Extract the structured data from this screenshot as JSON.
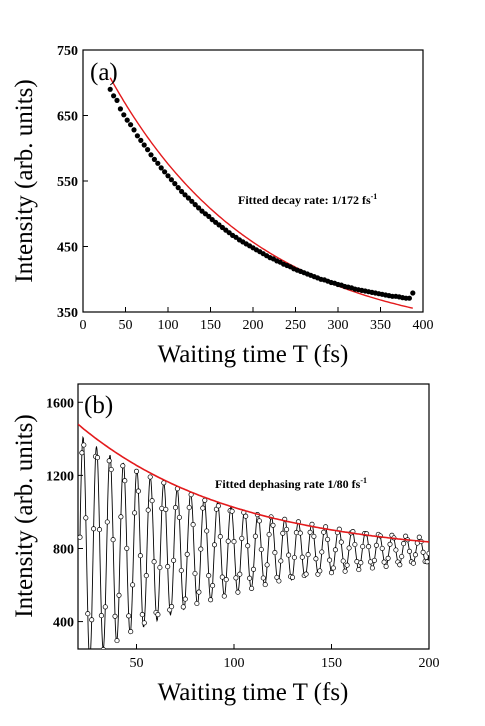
{
  "chart_data": [
    {
      "type": "scatter",
      "panel_label": "(a)",
      "xlabel": "Waiting time T (fs)",
      "ylabel": "Intensity (arb. units)",
      "xlim": [
        0,
        400
      ],
      "ylim": [
        350,
        750
      ],
      "xticks": [
        0,
        50,
        100,
        150,
        200,
        250,
        300,
        350,
        400
      ],
      "yticks": [
        350,
        450,
        550,
        650,
        750
      ],
      "annotation": "Fitted decay rate: 1/172 fs",
      "annotation_sup": "-1",
      "fit": {
        "model": "exponential",
        "rate_fs": 172,
        "offset": 305,
        "amplitude": 485,
        "color": "#e31a1c"
      },
      "series": [
        {
          "marker": "filled-circle",
          "color": "#000000",
          "x": [
            32,
            36,
            40,
            44,
            48,
            52,
            56,
            60,
            64,
            68,
            72,
            76,
            80,
            84,
            88,
            92,
            96,
            100,
            104,
            108,
            112,
            116,
            120,
            124,
            128,
            132,
            136,
            140,
            144,
            148,
            152,
            156,
            160,
            164,
            168,
            172,
            176,
            180,
            184,
            188,
            192,
            196,
            200,
            204,
            208,
            212,
            216,
            220,
            224,
            228,
            232,
            236,
            240,
            244,
            248,
            252,
            256,
            260,
            264,
            268,
            272,
            276,
            280,
            284,
            288,
            292,
            296,
            300,
            304,
            308,
            312,
            316,
            320,
            324,
            328,
            332,
            336,
            340,
            344,
            348,
            352,
            356,
            360,
            364,
            368,
            372,
            376,
            380,
            384,
            388
          ],
          "y": [
            690,
            680,
            673,
            660,
            651,
            643,
            636,
            628,
            619,
            612,
            605,
            598,
            590,
            583,
            577,
            570,
            564,
            558,
            552,
            546,
            540,
            534,
            529,
            524,
            519,
            514,
            509,
            504,
            500,
            496,
            491,
            487,
            483,
            479,
            475,
            471,
            467,
            464,
            460,
            457,
            454,
            451,
            448,
            445,
            442,
            439,
            436,
            433,
            431,
            428,
            426,
            423,
            421,
            419,
            416,
            414,
            412,
            410,
            408,
            406,
            404,
            402,
            400,
            399,
            397,
            395,
            394,
            392,
            391,
            389,
            388,
            387,
            385,
            384,
            383,
            382,
            381,
            380,
            379,
            378,
            377,
            376,
            375,
            374,
            374,
            373,
            372,
            371,
            371,
            379
          ]
        }
      ]
    },
    {
      "type": "line",
      "panel_label": "(b)",
      "xlabel": "Waiting time T (fs)",
      "ylabel": "Intensity (arb. units)",
      "xlim": [
        20,
        200
      ],
      "ylim": [
        250,
        1700
      ],
      "xticks": [
        50,
        100,
        150,
        200
      ],
      "yticks": [
        400,
        800,
        1200,
        1600
      ],
      "annotation": "Fitted dephasing rate 1/80 fs",
      "annotation_sup": "-1",
      "envelope": {
        "model": "exponential",
        "rate_fs": 80,
        "baseline": 760,
        "amplitude_at_20fs": 720,
        "color": "#e31a1c"
      },
      "series": [
        {
          "marker": "open-circle",
          "color": "#000000",
          "model": "damped-oscillation",
          "baseline": 790,
          "amplitude_at_20fs": 640,
          "period_fs": 6.9,
          "t_range": [
            21,
            200
          ]
        }
      ]
    }
  ]
}
